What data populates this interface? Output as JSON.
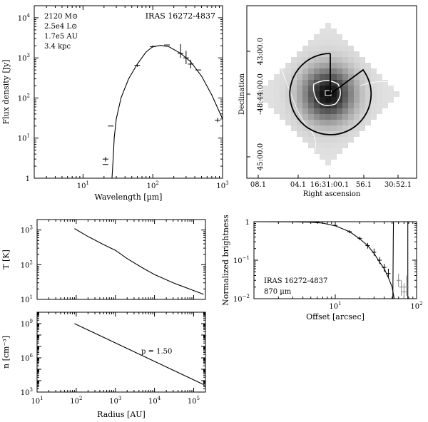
{
  "chart_data": [
    {
      "id": "sed",
      "type": "line",
      "title": "IRAS 16272-4837",
      "xlabel": "Wavelength [µm]",
      "ylabel": "Flux density [Jy]",
      "xscale": "log",
      "yscale": "log",
      "xlim": [
        2,
        1000
      ],
      "ylim": [
        1,
        20000
      ],
      "xticks": [
        {
          "v": 10,
          "base": "10",
          "exp": "1"
        },
        {
          "v": 100,
          "base": "10",
          "exp": "2"
        },
        {
          "v": 1000,
          "base": "10",
          "exp": "3"
        }
      ],
      "yticks": [
        {
          "v": 1,
          "base": "1",
          "exp": ""
        },
        {
          "v": 10,
          "base": "10",
          "exp": "1"
        },
        {
          "v": 100,
          "base": "10",
          "exp": "2"
        },
        {
          "v": 1000,
          "base": "10",
          "exp": "3"
        },
        {
          "v": 10000,
          "base": "10",
          "exp": "4"
        }
      ],
      "annotations": [
        "2120 M⊙",
        "2.5e4 L⊙",
        "1.7e5 AU",
        "3.4 kpc"
      ],
      "model": [
        [
          26,
          1
        ],
        [
          27,
          3
        ],
        [
          28,
          10
        ],
        [
          30,
          30
        ],
        [
          35,
          100
        ],
        [
          45,
          300
        ],
        [
          60,
          700
        ],
        [
          80,
          1400
        ],
        [
          100,
          1900
        ],
        [
          130,
          2050
        ],
        [
          170,
          1900
        ],
        [
          250,
          1300
        ],
        [
          350,
          800
        ],
        [
          500,
          350
        ],
        [
          700,
          120
        ],
        [
          1000,
          30
        ]
      ],
      "photometry": [
        {
          "x": 21,
          "y": 3,
          "lo": 2.6,
          "hi": 3.4
        },
        {
          "x": 21,
          "y": 2.2,
          "lo": 2.2,
          "hi": 2.2
        },
        {
          "x": 25,
          "y": 20,
          "lo": 20,
          "hi": 20
        },
        {
          "x": 60,
          "y": 650,
          "lo": 600,
          "hi": 700
        },
        {
          "x": 100,
          "y": 1900,
          "lo": 1800,
          "hi": 2050
        },
        {
          "x": 160,
          "y": 2100,
          "lo": 2100,
          "hi": 2100
        },
        {
          "x": 250,
          "y": 1300,
          "lo": 1000,
          "hi": 2200
        },
        {
          "x": 300,
          "y": 1000,
          "lo": 700,
          "hi": 1500
        },
        {
          "x": 350,
          "y": 700,
          "lo": 550,
          "hi": 900
        },
        {
          "x": 450,
          "y": 500,
          "lo": 500,
          "hi": 500
        },
        {
          "x": 850,
          "y": 28,
          "lo": 25,
          "hi": 32
        }
      ]
    },
    {
      "id": "map",
      "type": "heatmap",
      "xlabel": "Right ascension",
      "ylabel": "Declination",
      "xticks": [
        "08.1",
        "04.1",
        "16:31:00.1",
        "56.1",
        "30:52.1"
      ],
      "yticks": [
        "43:00.0",
        "-48:44:00.0",
        "45:00.0"
      ]
    },
    {
      "id": "radprof",
      "type": "line",
      "title": "IRAS 16272-4837",
      "subtitle": "870 µm",
      "xlabel": "Offset [arcsec]",
      "ylabel": "Normalized brightness",
      "xscale": "log",
      "yscale": "log",
      "xlim": [
        1,
        100
      ],
      "ylim": [
        0.01,
        1
      ],
      "xticks": [
        {
          "v": 10,
          "base": "10",
          "exp": "1"
        },
        {
          "v": 100,
          "base": "10",
          "exp": "2"
        }
      ],
      "yticks": [
        {
          "v": 1,
          "base": "1",
          "exp": ""
        },
        {
          "v": 0.1,
          "base": "10",
          "exp": "−1"
        },
        {
          "v": 0.01,
          "base": "10",
          "exp": "−2"
        }
      ],
      "model": [
        [
          1,
          1
        ],
        [
          3,
          0.99
        ],
        [
          5,
          0.97
        ],
        [
          7,
          0.92
        ],
        [
          10,
          0.78
        ],
        [
          15,
          0.55
        ],
        [
          20,
          0.36
        ],
        [
          25,
          0.24
        ],
        [
          30,
          0.15
        ],
        [
          35,
          0.09
        ],
        [
          40,
          0.06
        ],
        [
          45,
          0.035
        ],
        [
          50,
          0.02
        ],
        [
          53,
          0.01
        ]
      ],
      "observed": [
        {
          "x": 6,
          "y": 0.97,
          "lo": 0.95,
          "hi": 0.99
        },
        {
          "x": 10,
          "y": 0.8,
          "lo": 0.76,
          "hi": 0.84
        },
        {
          "x": 15,
          "y": 0.55,
          "lo": 0.5,
          "hi": 0.6
        },
        {
          "x": 20,
          "y": 0.37,
          "lo": 0.33,
          "hi": 0.41
        },
        {
          "x": 25,
          "y": 0.24,
          "lo": 0.2,
          "hi": 0.28
        },
        {
          "x": 30,
          "y": 0.16,
          "lo": 0.13,
          "hi": 0.2
        },
        {
          "x": 35,
          "y": 0.1,
          "lo": 0.08,
          "hi": 0.12
        },
        {
          "x": 40,
          "y": 0.065,
          "lo": 0.05,
          "hi": 0.08
        },
        {
          "x": 45,
          "y": 0.045,
          "lo": 0.035,
          "hi": 0.06
        },
        {
          "x": 60,
          "y": 0.03,
          "lo": 0.02,
          "hi": 0.045
        },
        {
          "x": 65,
          "y": 0.02,
          "lo": 0.012,
          "hi": 0.03
        },
        {
          "x": 70,
          "y": 0.015,
          "lo": 0.01,
          "hi": 0.025
        },
        {
          "x": 75,
          "y": 0.02,
          "lo": 0.012,
          "hi": 0.04
        }
      ],
      "beam": [
        [
          52,
          1
        ],
        [
          51.7,
          0.3
        ],
        [
          51.3,
          0.05
        ],
        [
          51,
          0.01
        ]
      ]
    },
    {
      "id": "temp",
      "type": "line",
      "ylabel": "T [K]",
      "xscale": "log",
      "yscale": "log",
      "xlim": [
        10,
        200000
      ],
      "ylim": [
        10,
        2000
      ],
      "yticks": [
        {
          "v": 10,
          "base": "10",
          "exp": "1"
        },
        {
          "v": 100,
          "base": "10",
          "exp": "2"
        },
        {
          "v": 1000,
          "base": "10",
          "exp": "3"
        }
      ],
      "model": [
        [
          90,
          1100
        ],
        [
          200,
          650
        ],
        [
          500,
          380
        ],
        [
          1000,
          260
        ],
        [
          2000,
          150
        ],
        [
          5000,
          80
        ],
        [
          10000,
          52
        ],
        [
          30000,
          30
        ],
        [
          100000,
          18
        ],
        [
          180000,
          14
        ]
      ]
    },
    {
      "id": "dens",
      "type": "line",
      "xlabel": "Radius [AU]",
      "ylabel": "n [cm⁻³]",
      "xscale": "log",
      "yscale": "log",
      "xlim": [
        10,
        200000
      ],
      "ylim": [
        1000,
        10000000000
      ],
      "xticks": [
        {
          "v": 10,
          "base": "10",
          "exp": "1"
        },
        {
          "v": 100,
          "base": "10",
          "exp": "2"
        },
        {
          "v": 1000,
          "base": "10",
          "exp": "3"
        },
        {
          "v": 10000,
          "base": "10",
          "exp": "4"
        },
        {
          "v": 100000,
          "base": "10",
          "exp": "5"
        }
      ],
      "yticks": [
        {
          "v": 1000,
          "base": "10",
          "exp": "3"
        },
        {
          "v": 1000000,
          "base": "10",
          "exp": "6"
        },
        {
          "v": 1000000000,
          "base": "10",
          "exp": "9"
        }
      ],
      "annotation": "p = 1.50",
      "model": [
        [
          90,
          1000000000
        ],
        [
          180000,
          4500
        ]
      ]
    }
  ]
}
